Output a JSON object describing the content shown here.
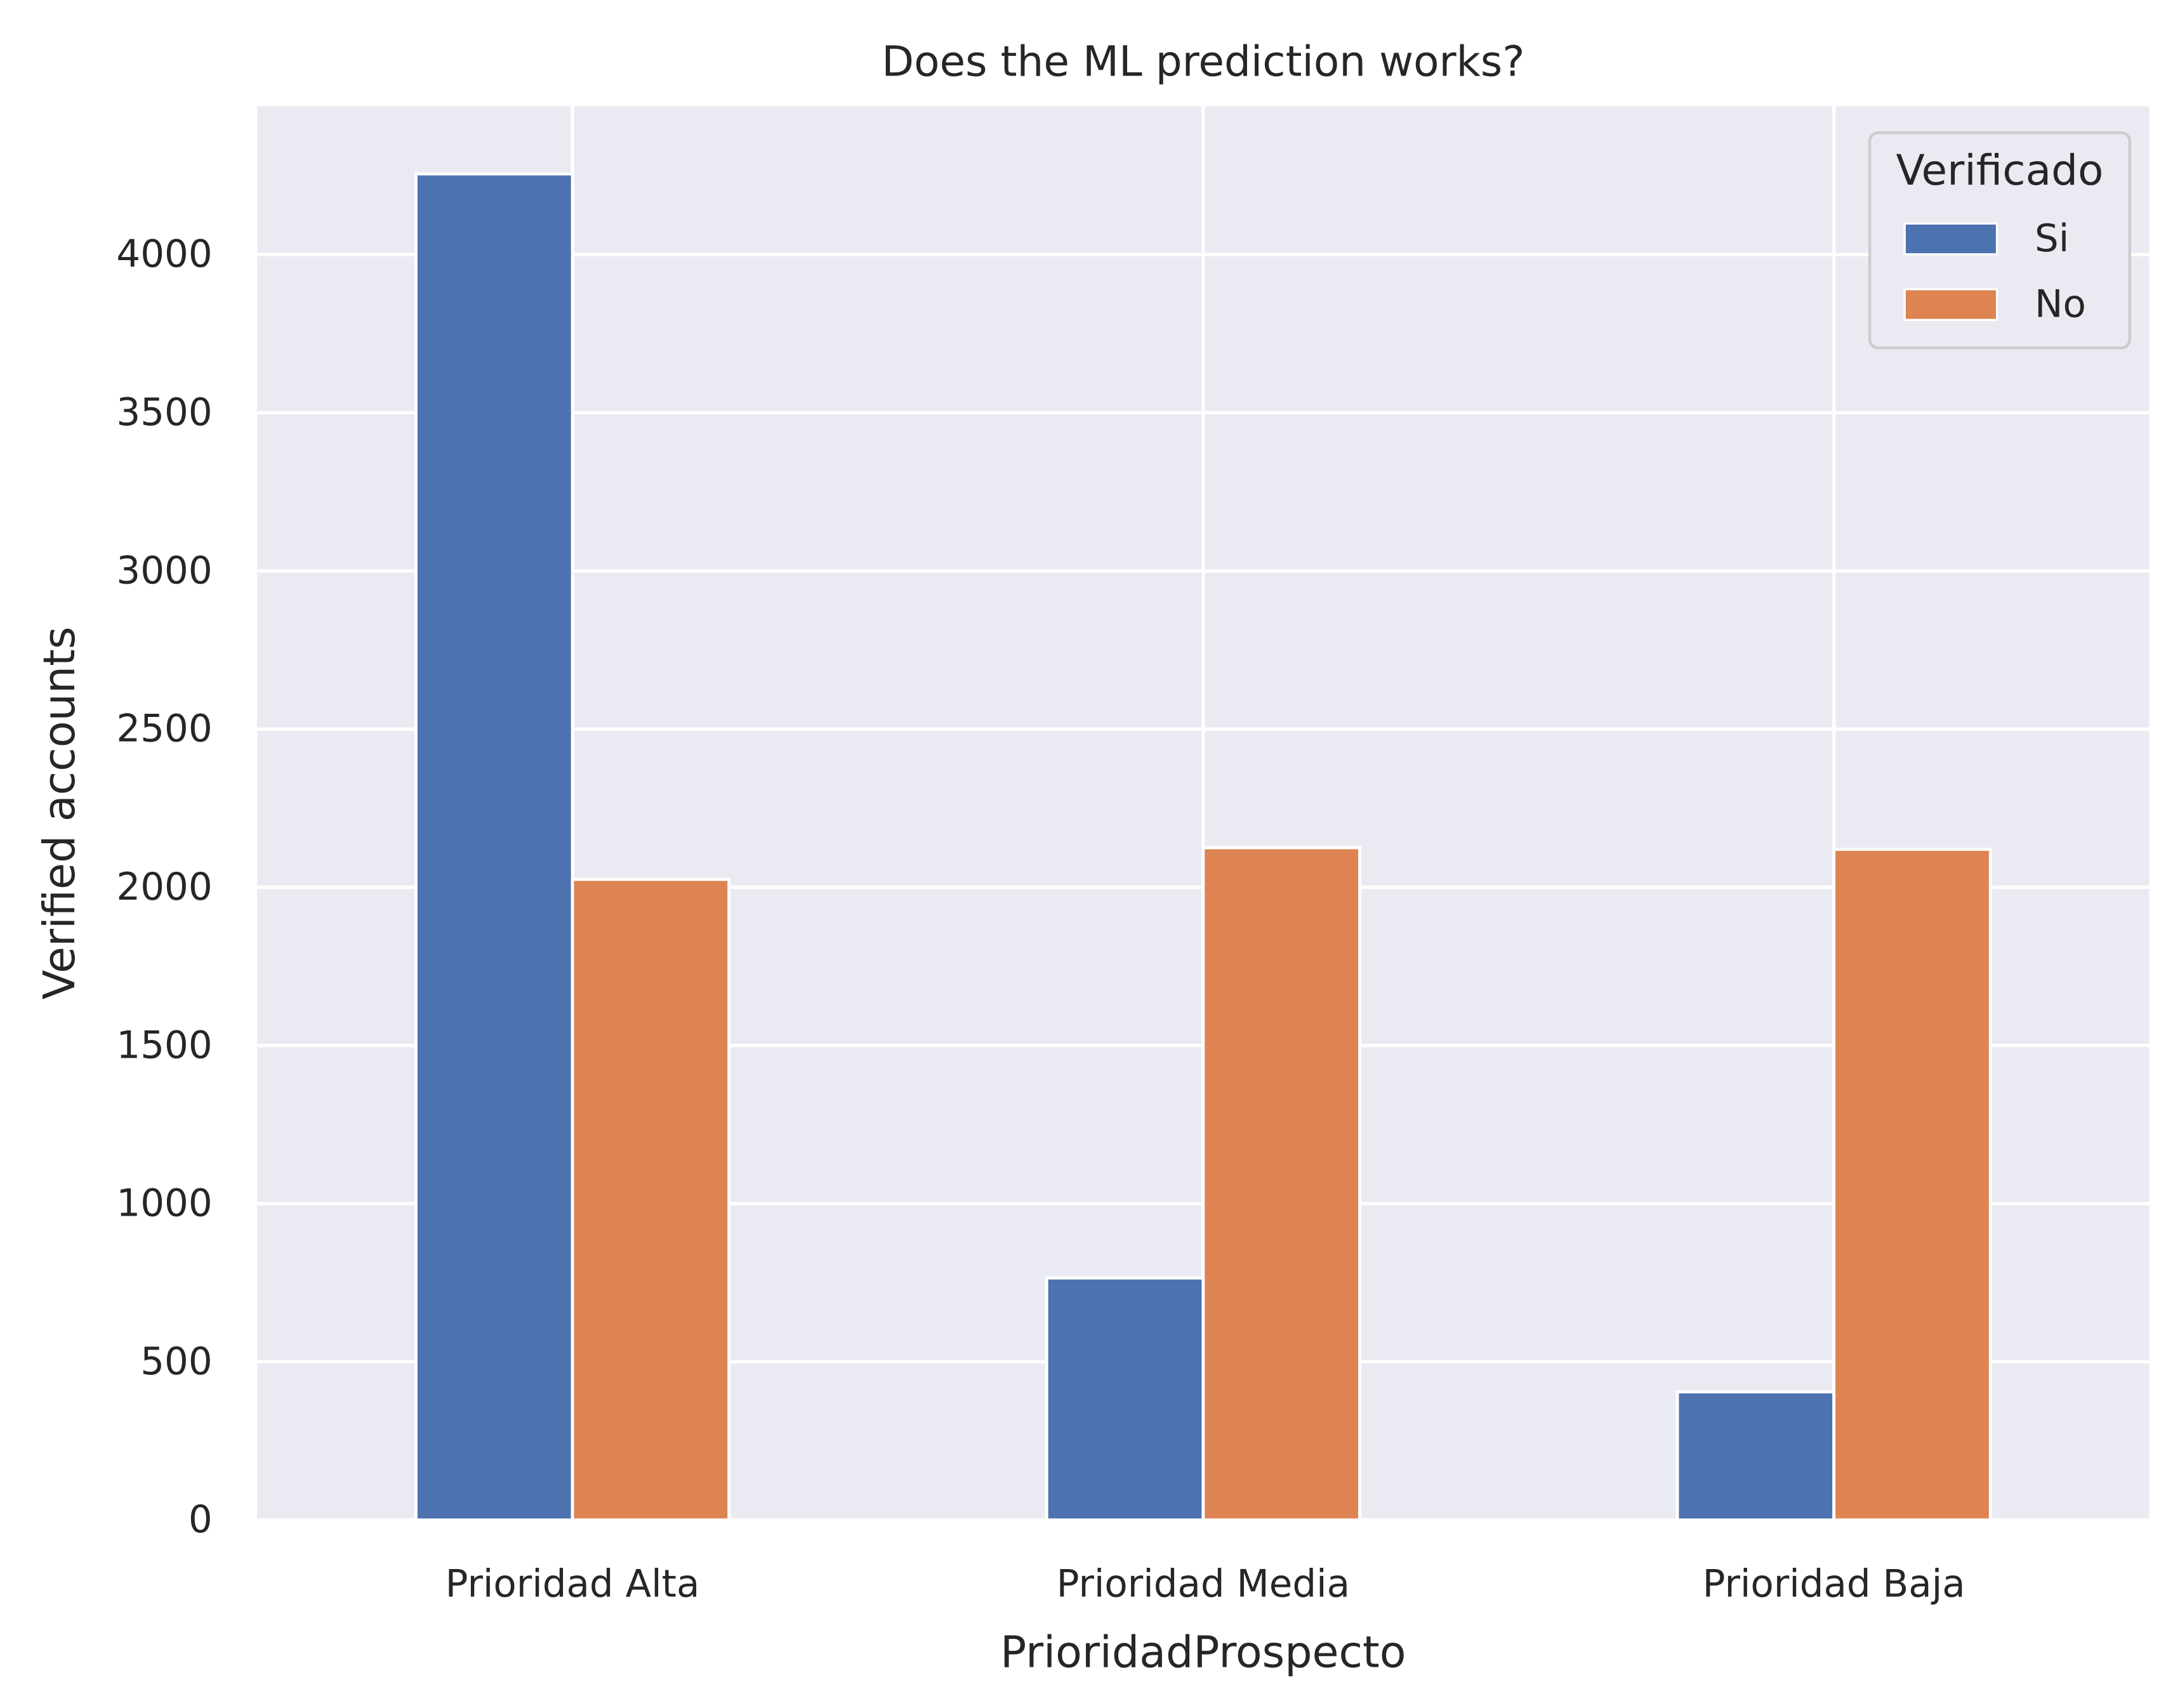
{
  "chart_data": {
    "type": "bar",
    "title": "Does the ML prediction works?",
    "xlabel": "PrioridadProspecto",
    "ylabel": "Verified accounts",
    "categories": [
      "Prioridad Alta",
      "Prioridad Media",
      "Prioridad Baja"
    ],
    "series": [
      {
        "name": "Si",
        "values": [
          4255,
          765,
          405
        ],
        "color": "#4c72b0"
      },
      {
        "name": "No",
        "values": [
          2025,
          2125,
          2120
        ],
        "color": "#dd8452"
      }
    ],
    "ylim": [
      0,
      4469
    ],
    "yticks": [
      0,
      500,
      1000,
      1500,
      2000,
      2500,
      3000,
      3500,
      4000
    ],
    "grid": true,
    "legend": {
      "title": "Verificado",
      "placement": "top-right"
    },
    "background_color": "#eaeaf2",
    "grid_color": "#ffffff"
  }
}
